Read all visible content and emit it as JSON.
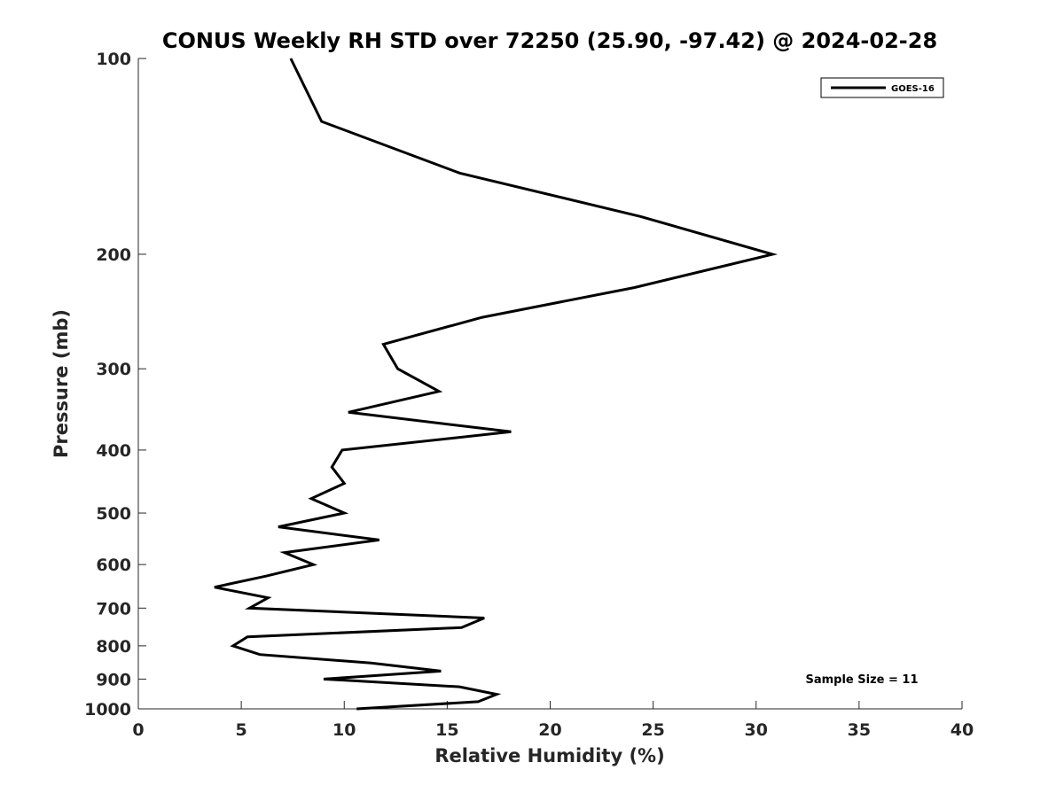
{
  "chart_data": {
    "type": "line",
    "title": "CONUS Weekly RH STD over 72250 (25.90, -97.42) @ 2024-02-28",
    "xlabel": "Relative Humidity (%)",
    "ylabel": "Pressure (mb)",
    "xlim": [
      0,
      40
    ],
    "ylim": [
      100,
      1000
    ],
    "y_scale": "log",
    "y_reversed": true,
    "x_ticks": [
      0,
      5,
      10,
      15,
      20,
      25,
      30,
      35,
      40
    ],
    "y_ticks": [
      100,
      200,
      300,
      400,
      500,
      600,
      700,
      800,
      900,
      1000
    ],
    "legend_position": "top-right",
    "annotation": "Sample Size = 11",
    "series": [
      {
        "name": "GOES-16",
        "color": "#000000",
        "points": [
          {
            "p": 100,
            "rh": 7.4
          },
          {
            "p": 125,
            "rh": 8.9
          },
          {
            "p": 150,
            "rh": 15.6
          },
          {
            "p": 175,
            "rh": 24.4
          },
          {
            "p": 200,
            "rh": 30.8
          },
          {
            "p": 225,
            "rh": 24.1
          },
          {
            "p": 250,
            "rh": 16.7
          },
          {
            "p": 275,
            "rh": 11.9
          },
          {
            "p": 300,
            "rh": 12.6
          },
          {
            "p": 325,
            "rh": 14.6
          },
          {
            "p": 350,
            "rh": 10.2
          },
          {
            "p": 375,
            "rh": 18.1
          },
          {
            "p": 400,
            "rh": 9.9
          },
          {
            "p": 425,
            "rh": 9.4
          },
          {
            "p": 450,
            "rh": 10.0
          },
          {
            "p": 475,
            "rh": 8.4
          },
          {
            "p": 500,
            "rh": 10.0
          },
          {
            "p": 525,
            "rh": 6.8
          },
          {
            "p": 550,
            "rh": 11.7
          },
          {
            "p": 575,
            "rh": 7.1
          },
          {
            "p": 600,
            "rh": 8.5
          },
          {
            "p": 625,
            "rh": 6.2
          },
          {
            "p": 650,
            "rh": 3.7
          },
          {
            "p": 675,
            "rh": 6.3
          },
          {
            "p": 700,
            "rh": 5.4
          },
          {
            "p": 725,
            "rh": 16.8
          },
          {
            "p": 750,
            "rh": 15.7
          },
          {
            "p": 775,
            "rh": 5.3
          },
          {
            "p": 800,
            "rh": 4.6
          },
          {
            "p": 825,
            "rh": 5.9
          },
          {
            "p": 850,
            "rh": 11.3
          },
          {
            "p": 875,
            "rh": 14.7
          },
          {
            "p": 900,
            "rh": 9.0
          },
          {
            "p": 925,
            "rh": 15.6
          },
          {
            "p": 950,
            "rh": 17.4
          },
          {
            "p": 975,
            "rh": 16.5
          },
          {
            "p": 1000,
            "rh": 10.6
          }
        ]
      }
    ]
  }
}
